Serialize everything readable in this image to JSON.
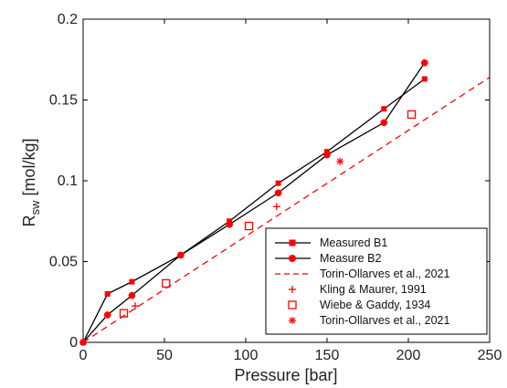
{
  "chart_data": {
    "type": "line",
    "xlabel": "Pressure [bar]",
    "ylabel_main": "R",
    "ylabel_sub": "sw",
    "ylabel_unit": " [mol/kg]",
    "xlim": [
      0,
      250
    ],
    "ylim": [
      0,
      0.2
    ],
    "x_ticks": [
      0,
      50,
      100,
      150,
      200,
      250
    ],
    "y_ticks": [
      0,
      0.05,
      0.1,
      0.15,
      0.2
    ],
    "x_tick_labels": [
      "0",
      "50",
      "100",
      "150",
      "200",
      "250"
    ],
    "y_tick_labels": [
      "0",
      "0.05",
      "0.1",
      "0.15",
      "0.2"
    ],
    "grid": false,
    "legend_position": "bottom-right",
    "color": "#ff0000",
    "series": [
      {
        "name": "Measured B1",
        "style": "line-marker",
        "marker": "square",
        "points": [
          [
            0,
            0
          ],
          [
            15,
            0.03
          ],
          [
            30,
            0.0375
          ],
          [
            60,
            0.054
          ],
          [
            90,
            0.075
          ],
          [
            120,
            0.0985
          ],
          [
            150,
            0.118
          ],
          [
            185,
            0.1445
          ],
          [
            210,
            0.163
          ]
        ]
      },
      {
        "name": "Measure B2",
        "style": "line-marker",
        "marker": "circle",
        "points": [
          [
            0,
            0
          ],
          [
            15,
            0.017
          ],
          [
            30,
            0.029
          ],
          [
            60,
            0.054
          ],
          [
            90,
            0.073
          ],
          [
            120,
            0.0925
          ],
          [
            150,
            0.116
          ],
          [
            185,
            0.136
          ],
          [
            210,
            0.173
          ]
        ]
      },
      {
        "name": "Torin-Ollarves et al., 2021",
        "style": "dashed",
        "points": [
          [
            0,
            0
          ],
          [
            250,
            0.164
          ]
        ]
      },
      {
        "name": "Kling & Maurer, 1991",
        "style": "marker",
        "marker": "plus",
        "points": [
          [
            32,
            0.0225
          ],
          [
            119,
            0.084
          ]
        ]
      },
      {
        "name": "Wiebe & Gaddy, 1934",
        "style": "marker",
        "marker": "open-square",
        "points": [
          [
            25,
            0.018
          ],
          [
            51,
            0.0365
          ],
          [
            102,
            0.072
          ],
          [
            202,
            0.141
          ]
        ]
      },
      {
        "name": "Torin-Ollarves et al., 2021",
        "style": "marker",
        "marker": "asterisk",
        "points": [
          [
            158,
            0.112
          ]
        ]
      }
    ]
  }
}
